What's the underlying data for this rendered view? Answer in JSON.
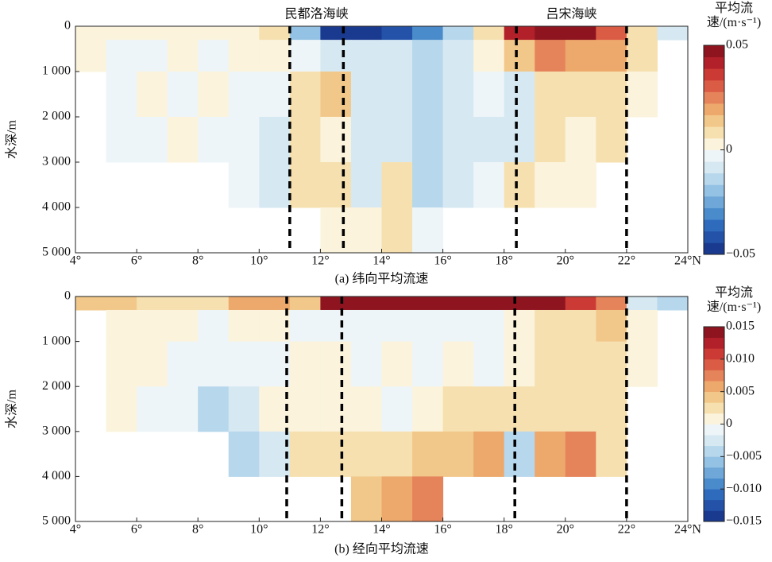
{
  "chart_data": [
    {
      "type": "heatmap",
      "caption": "(a) 纬向平均流速",
      "ylabel": "水深/m",
      "colorbar_label": "平均流速/(m·s⁻¹)",
      "xlim": [
        4,
        24
      ],
      "ylim": [
        0,
        5000
      ],
      "y_inverted": true,
      "xticks": [
        {
          "value": 4,
          "label": "4°"
        },
        {
          "value": 6,
          "label": "6°"
        },
        {
          "value": 8,
          "label": "8°"
        },
        {
          "value": 10,
          "label": "10°"
        },
        {
          "value": 12,
          "label": "12°"
        },
        {
          "value": 14,
          "label": "14°"
        },
        {
          "value": 16,
          "label": "16°"
        },
        {
          "value": 18,
          "label": "18°"
        },
        {
          "value": 20,
          "label": "20°"
        },
        {
          "value": 22,
          "label": "22°"
        },
        {
          "value": 24,
          "label": "24°N"
        }
      ],
      "yticks": [
        0,
        {
          "value": 1000,
          "label": "1 000"
        },
        {
          "value": 2000,
          "label": "2 000"
        },
        {
          "value": 3000,
          "label": "3 000"
        },
        {
          "value": 4000,
          "label": "4 000"
        },
        {
          "value": 5000,
          "label": "5 000"
        }
      ],
      "zlim": [
        -0.05,
        0.05
      ],
      "zticks": [
        0.05,
        0,
        {
          "value": -0.05,
          "label": "−0.05"
        }
      ],
      "colorscale": [
        "#1a3a8f",
        "#2352a8",
        "#2e6bbd",
        "#4a8bcc",
        "#6ea7d8",
        "#93c2e4",
        "#b7d7ec",
        "#d6e8f2",
        "#eef5f8",
        "#fbf3dc",
        "#f6e0b0",
        "#f2c88a",
        "#eda86c",
        "#e5845a",
        "#db5c45",
        "#cc3a35",
        "#b2202a",
        "#8e1520"
      ],
      "vlines": [
        11,
        12.75,
        18.4,
        22
      ],
      "annotations": [
        "民都洛海峡",
        "吕宋海峡"
      ],
      "xbins": [
        4,
        5,
        6,
        7,
        8,
        9,
        10,
        11,
        12,
        13,
        14,
        15,
        16,
        17,
        18,
        19,
        20,
        21,
        22,
        23,
        24
      ],
      "ybins": [
        0,
        300,
        1000,
        2000,
        3000,
        4000,
        5000
      ],
      "values": [
        [
          0.002,
          0.002,
          0.002,
          0.003,
          0.002,
          0.004,
          0.01,
          -0.02,
          -0.045,
          -0.05,
          -0.04,
          -0.03,
          -0.015,
          0.01,
          0.04,
          0.05,
          0.045,
          0.03,
          0.01,
          -0.01
        ],
        [
          0.001,
          -0.003,
          -0.002,
          0.002,
          -0.002,
          0.002,
          0.004,
          -0.005,
          -0.01,
          -0.01,
          -0.008,
          -0.012,
          -0.008,
          0.003,
          0.015,
          0.025,
          0.02,
          0.02,
          0.006,
          null
        ],
        [
          null,
          -0.002,
          0.002,
          -0.002,
          0.002,
          -0.003,
          -0.004,
          0.006,
          0.012,
          -0.006,
          -0.008,
          -0.015,
          -0.01,
          -0.004,
          -0.01,
          0.008,
          0.008,
          0.01,
          0.004,
          null
        ],
        [
          null,
          -0.002,
          -0.002,
          0.001,
          -0.003,
          -0.005,
          -0.008,
          0.008,
          0.005,
          -0.008,
          -0.01,
          -0.012,
          -0.008,
          -0.006,
          -0.008,
          0.006,
          0.004,
          0.006,
          null,
          null
        ],
        [
          null,
          null,
          null,
          null,
          null,
          -0.005,
          -0.006,
          0.006,
          0.01,
          -0.01,
          0.008,
          -0.012,
          -0.01,
          -0.005,
          0.01,
          0.004,
          0.003,
          null,
          null,
          null
        ],
        [
          null,
          null,
          null,
          null,
          null,
          null,
          null,
          null,
          0.004,
          0.002,
          0.006,
          -0.004,
          null,
          null,
          null,
          null,
          null,
          null,
          null,
          null
        ]
      ]
    },
    {
      "type": "heatmap",
      "caption": "(b) 经向平均流速",
      "ylabel": "水深/m",
      "colorbar_label": "平均流速/(m·s⁻¹)",
      "xlim": [
        4,
        24
      ],
      "ylim": [
        0,
        5000
      ],
      "y_inverted": true,
      "xticks": [
        {
          "value": 4,
          "label": "4°"
        },
        {
          "value": 6,
          "label": "6°"
        },
        {
          "value": 8,
          "label": "8°"
        },
        {
          "value": 10,
          "label": "10°"
        },
        {
          "value": 12,
          "label": "12°"
        },
        {
          "value": 14,
          "label": "14°"
        },
        {
          "value": 16,
          "label": "16°"
        },
        {
          "value": 18,
          "label": "18°"
        },
        {
          "value": 20,
          "label": "20°"
        },
        {
          "value": 22,
          "label": "22°"
        },
        {
          "value": 24,
          "label": "24°N"
        }
      ],
      "yticks": [
        0,
        {
          "value": 1000,
          "label": "1 000"
        },
        {
          "value": 2000,
          "label": "2 000"
        },
        {
          "value": 3000,
          "label": "3 000"
        },
        {
          "value": 4000,
          "label": "4 000"
        },
        {
          "value": 5000,
          "label": "5 000"
        }
      ],
      "zlim": [
        -0.015,
        0.015
      ],
      "zticks": [
        0.015,
        {
          "value": 0.01,
          "label": "0.010"
        },
        0.005,
        0,
        {
          "value": -0.005,
          "label": "−0.005"
        },
        {
          "value": -0.01,
          "label": "−0.010"
        },
        {
          "value": -0.015,
          "label": "−0.015"
        }
      ],
      "colorscale": [
        "#1a3a8f",
        "#2352a8",
        "#2e6bbd",
        "#4a8bcc",
        "#6ea7d8",
        "#93c2e4",
        "#b7d7ec",
        "#d6e8f2",
        "#eef5f8",
        "#fbf3dc",
        "#f6e0b0",
        "#f2c88a",
        "#eda86c",
        "#e5845a",
        "#db5c45",
        "#cc3a35",
        "#b2202a",
        "#8e1520"
      ],
      "vlines": [
        10.9,
        12.7,
        18.35,
        22
      ],
      "xbins": [
        4,
        5,
        6,
        7,
        8,
        9,
        10,
        11,
        12,
        13,
        14,
        15,
        16,
        17,
        18,
        19,
        20,
        21,
        22,
        23,
        24
      ],
      "ybins": [
        0,
        300,
        1000,
        2000,
        3000,
        4000,
        5000
      ],
      "values": [
        [
          0.004,
          0.004,
          0.003,
          0.003,
          0.003,
          0.006,
          0.006,
          0.004,
          0.014,
          0.015,
          0.015,
          0.014,
          0.014,
          0.014,
          0.015,
          0.014,
          0.01,
          0.008,
          -0.003,
          -0.004
        ],
        [
          null,
          0.001,
          0.001,
          0.001,
          -0.001,
          0.001,
          0.001,
          -0.001,
          -0.001,
          -0.001,
          -0.001,
          -0.001,
          -0.001,
          -0.001,
          0.001,
          0.002,
          0.003,
          0.004,
          0.001,
          null
        ],
        [
          null,
          0.001,
          0.001,
          -0.001,
          -0.001,
          -0.001,
          -0.001,
          0.001,
          0.001,
          -0.001,
          0.001,
          -0.001,
          0.001,
          -0.001,
          0.001,
          0.002,
          0.002,
          0.002,
          0.001,
          null
        ],
        [
          null,
          0.001,
          -0.001,
          -0.001,
          -0.004,
          -0.002,
          0.001,
          0.001,
          0.001,
          0.001,
          -0.001,
          0.001,
          0.002,
          0.002,
          0.003,
          0.003,
          0.003,
          0.002,
          null,
          null
        ],
        [
          null,
          null,
          null,
          null,
          null,
          -0.004,
          -0.002,
          0.002,
          0.002,
          0.002,
          0.003,
          0.004,
          0.004,
          0.006,
          -0.004,
          0.006,
          0.008,
          0.003,
          null,
          null
        ],
        [
          null,
          null,
          null,
          null,
          null,
          null,
          null,
          null,
          null,
          0.004,
          0.006,
          0.008,
          null,
          null,
          null,
          null,
          null,
          null,
          null,
          null
        ]
      ]
    }
  ]
}
